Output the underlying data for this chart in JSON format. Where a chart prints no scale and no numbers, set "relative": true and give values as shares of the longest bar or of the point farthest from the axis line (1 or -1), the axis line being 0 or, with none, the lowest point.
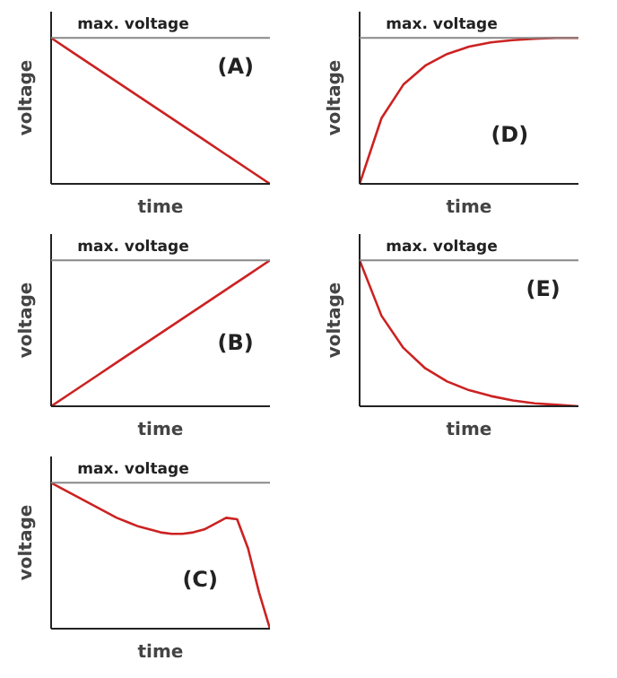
{
  "chart_data": [
    {
      "type": "line",
      "relative": true,
      "xlabel": "time",
      "ylabel": "voltage",
      "annotations": [
        "(A)"
      ],
      "categories": [
        null,
        null,
        null,
        null,
        null,
        null,
        null,
        null,
        null,
        null,
        null
      ],
      "series": [
        {
          "color": "#cc2222",
          "values": [
            1,
            0.9,
            0.8,
            0.7,
            0.6,
            0.5,
            0.4,
            0.3,
            0.2,
            0.1,
            0
          ]
        }
      ],
      "ref_lines": [
        {
          "axis": "y",
          "value": 1,
          "label": "max. voltage",
          "color": "#888888"
        }
      ],
      "grid": false
    },
    {
      "type": "line",
      "relative": true,
      "xlabel": "time",
      "ylabel": "voltage",
      "annotations": [
        "(D)"
      ],
      "categories": [
        null,
        null,
        null,
        null,
        null,
        null,
        null,
        null,
        null,
        null,
        null
      ],
      "series": [
        {
          "color": "#cc2222",
          "values": [
            0,
            0.45,
            0.68,
            0.81,
            0.89,
            0.94,
            0.97,
            0.985,
            0.995,
            1,
            1
          ]
        }
      ],
      "ref_lines": [
        {
          "axis": "y",
          "value": 1,
          "label": "max. voltage",
          "color": "#888888"
        }
      ],
      "grid": false
    },
    {
      "type": "line",
      "relative": true,
      "xlabel": "time",
      "ylabel": "voltage",
      "annotations": [
        "(B)"
      ],
      "categories": [
        null,
        null,
        null,
        null,
        null,
        null,
        null,
        null,
        null,
        null,
        null
      ],
      "series": [
        {
          "color": "#cc2222",
          "values": [
            0,
            0.1,
            0.2,
            0.3,
            0.4,
            0.5,
            0.6,
            0.7,
            0.8,
            0.9,
            1
          ]
        }
      ],
      "ref_lines": [
        {
          "axis": "y",
          "value": 1,
          "label": "max. voltage",
          "color": "#888888"
        }
      ],
      "grid": false
    },
    {
      "type": "line",
      "relative": true,
      "xlabel": "time",
      "ylabel": "voltage",
      "annotations": [
        "(E)"
      ],
      "categories": [
        null,
        null,
        null,
        null,
        null,
        null,
        null,
        null,
        null,
        null,
        null
      ],
      "series": [
        {
          "color": "#cc2222",
          "values": [
            1,
            0.62,
            0.4,
            0.26,
            0.17,
            0.11,
            0.07,
            0.04,
            0.02,
            0.01,
            0
          ]
        }
      ],
      "ref_lines": [
        {
          "axis": "y",
          "value": 1,
          "label": "max. voltage",
          "color": "#888888"
        }
      ],
      "grid": false
    },
    {
      "type": "line",
      "relative": true,
      "xlabel": "time",
      "ylabel": "voltage",
      "annotations": [
        "(C)"
      ],
      "categories": [
        null,
        null,
        null,
        null,
        null,
        null,
        null,
        null,
        null,
        null,
        null,
        null,
        null,
        null,
        null,
        null,
        null,
        null,
        null,
        null,
        null
      ],
      "series": [
        {
          "color": "#cc2222",
          "values": [
            1,
            0.96,
            0.92,
            0.88,
            0.84,
            0.8,
            0.76,
            0.73,
            0.7,
            0.68,
            0.66,
            0.65,
            0.65,
            0.66,
            0.68,
            0.72,
            0.76,
            0.75,
            0.55,
            0.25,
            0
          ]
        }
      ],
      "ref_lines": [
        {
          "axis": "y",
          "value": 1,
          "label": "max. voltage",
          "color": "#888888"
        }
      ],
      "grid": false
    }
  ]
}
